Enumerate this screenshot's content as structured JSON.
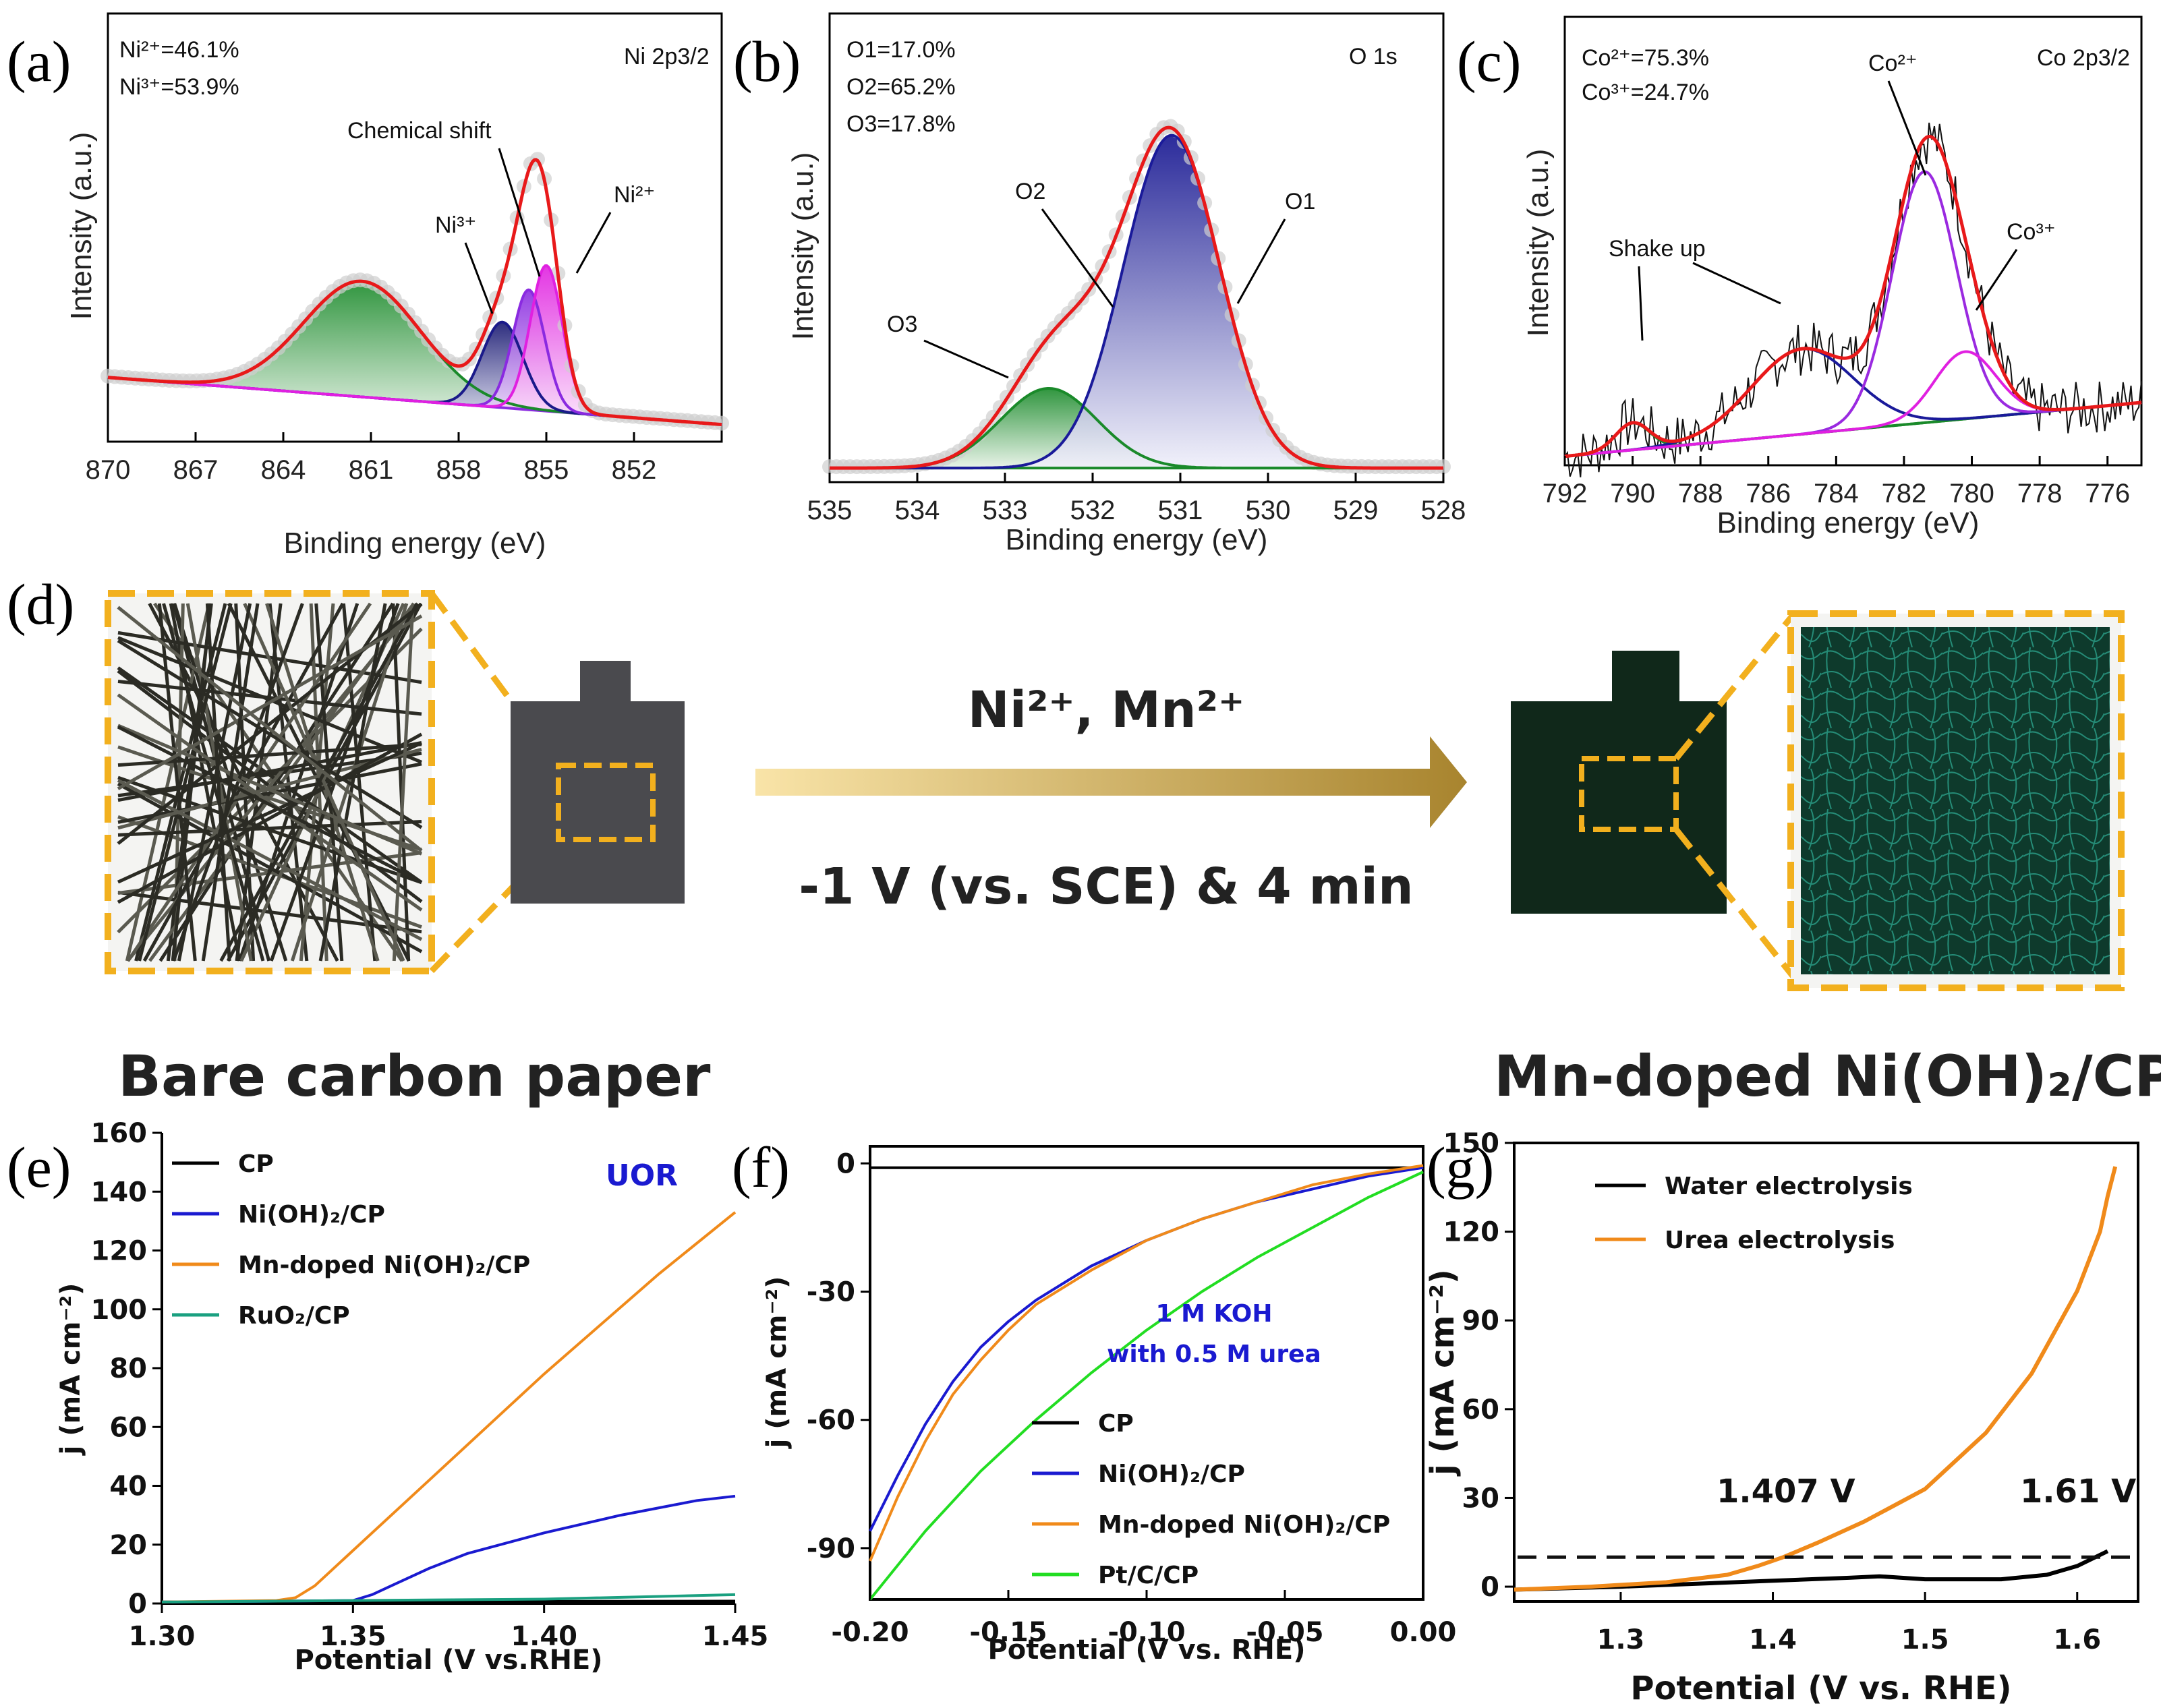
{
  "panel_labels": {
    "a": "(a)",
    "b": "(b)",
    "c": "(c)",
    "d": "(d)",
    "e": "(e)",
    "f": "(f)",
    "g": "(g)"
  },
  "scheme": {
    "arrow_top": "Ni²⁺, Mn²⁺",
    "arrow_bottom": "-1 V (vs. SCE) & 4 min",
    "left_caption": "Bare carbon paper",
    "right_caption": "Mn-doped Ni(OH)₂/CP",
    "colors": {
      "frame": "#f2b01e",
      "arrow_light": "#f7dfa0",
      "arrow_dark": "#b08a2e",
      "paper": "#4a4a4a",
      "mn_paper": "#0f2a18",
      "mn_texture": "#1a6a5a"
    }
  },
  "chart_data": [
    {
      "id": "a",
      "type": "line",
      "title": "Ni 2p3/2",
      "xlabel": "Binding energy (eV)",
      "ylabel": "Intensity (a.u.)",
      "xlim": [
        870,
        849
      ],
      "ylim": [
        0,
        100
      ],
      "x_ticks": [
        "870",
        "867",
        "864",
        "861",
        "858",
        "855",
        "852"
      ],
      "ratios": [
        "Ni²⁺=46.1%",
        "Ni³⁺=53.9%"
      ],
      "annotations": {
        "shift": "Chemical shift",
        "ni3": "Ni³⁺",
        "ni2": "Ni²⁺"
      },
      "peaks": [
        {
          "name": "satellite",
          "center": 861.3,
          "sigma": 2.0,
          "amp": 27,
          "color": "#1a8a2a"
        },
        {
          "name": "Ni3+ a",
          "center": 856.5,
          "sigma": 0.7,
          "amp": 20,
          "color": "#1a1a8a"
        },
        {
          "name": "Ni3+ b",
          "center": 855.6,
          "sigma": 0.55,
          "amp": 28,
          "color": "#8a2ae0"
        },
        {
          "name": "Ni2+",
          "center": 855.0,
          "sigma": 0.55,
          "amp": 34,
          "color": "#e020e0"
        }
      ],
      "baseline": [
        15,
        4
      ],
      "envelope_color": "#e8191a"
    },
    {
      "id": "b",
      "type": "line",
      "title": "O 1s",
      "xlabel": "Binding energy (eV)",
      "ylabel": "Intensity (a.u.)",
      "xlim": [
        535,
        528
      ],
      "ylim": [
        0,
        100
      ],
      "x_ticks": [
        "535",
        "534",
        "533",
        "532",
        "531",
        "530",
        "529",
        "528"
      ],
      "ratios": [
        "O1=17.0%",
        "O2=65.2%",
        "O3=17.8%"
      ],
      "labels": {
        "o1": "O1",
        "o2": "O2",
        "o3": "O3"
      },
      "peaks": [
        {
          "name": "O3",
          "center": 532.5,
          "sigma": 0.55,
          "amp": 17,
          "color": "#1a8a2a"
        },
        {
          "name": "O1/O2",
          "center": 531.1,
          "sigma": 0.55,
          "amp": 71,
          "color": "#1a1a9a"
        },
        {
          "name": "shoulder",
          "center": 532.2,
          "sigma": 0.5,
          "amp": 10,
          "color": "#e8191a"
        }
      ],
      "baseline": [
        3,
        3
      ],
      "envelope_color": "#e8191a"
    },
    {
      "id": "c",
      "type": "line",
      "title": "Co 2p3/2",
      "xlabel": "Binding energy (eV)",
      "ylabel": "Intensity (a.u.)",
      "xlim": [
        792,
        775
      ],
      "ylim": [
        0,
        100
      ],
      "x_ticks": [
        "792",
        "790",
        "788",
        "786",
        "784",
        "782",
        "780",
        "778",
        "776"
      ],
      "ratios": [
        "Co²⁺=75.3%",
        "Co³⁺=24.7%"
      ],
      "annotations": {
        "shake": "Shake up",
        "co2": "Co²⁺",
        "co3": "Co³⁺"
      },
      "peaks": [
        {
          "name": "small sat",
          "center": 790.0,
          "sigma": 0.5,
          "amp": 6,
          "color": "#1a8a2a"
        },
        {
          "name": "shake up",
          "center": 785.0,
          "sigma": 1.5,
          "amp": 19,
          "color": "#1a1a9a"
        },
        {
          "name": "Co2+",
          "center": 781.4,
          "sigma": 0.95,
          "amp": 56,
          "color": "#9a2ae0"
        },
        {
          "name": "Co3+",
          "center": 780.2,
          "sigma": 0.9,
          "amp": 15,
          "color": "#e020e0"
        }
      ],
      "baseline": [
        2,
        14
      ],
      "envelope_color": "#e8191a"
    },
    {
      "id": "e",
      "type": "line",
      "title": "UOR",
      "xlabel": "Potential (V vs.RHE)",
      "ylabel": "j (mA cm⁻²)",
      "xlim": [
        1.3,
        1.45
      ],
      "ylim": [
        0,
        160
      ],
      "x_ticks": [
        "1.30",
        "1.35",
        "1.40",
        "1.45"
      ],
      "y_ticks": [
        "0",
        "20",
        "40",
        "60",
        "80",
        "100",
        "120",
        "140",
        "160"
      ],
      "series": [
        {
          "name": "CP",
          "color": "#000000",
          "x": [
            1.3,
            1.45
          ],
          "y": [
            0.5,
            0.8
          ]
        },
        {
          "name": "Ni(OH)₂/CP",
          "color": "#1a1ad0",
          "x": [
            1.3,
            1.35,
            1.355,
            1.36,
            1.37,
            1.38,
            1.4,
            1.42,
            1.44,
            1.45
          ],
          "y": [
            0.5,
            1,
            3,
            6,
            12,
            17,
            24,
            30,
            35,
            36.5
          ]
        },
        {
          "name": "Mn-doped Ni(OH)₂/CP",
          "color": "#f08a1a",
          "x": [
            1.3,
            1.33,
            1.335,
            1.34,
            1.35,
            1.37,
            1.4,
            1.43,
            1.45
          ],
          "y": [
            0.5,
            1,
            2,
            6,
            18,
            42,
            78,
            112,
            133
          ]
        },
        {
          "name": "RuO₂/CP",
          "color": "#1aa080",
          "x": [
            1.3,
            1.4,
            1.45
          ],
          "y": [
            0.5,
            1.5,
            3
          ]
        }
      ]
    },
    {
      "id": "f",
      "type": "line",
      "title": "1 M KOH with 0.5 M urea",
      "title_line1": "1 M KOH",
      "title_line2": "with 0.5 M urea",
      "xlabel": "Potential (V vs. RHE)",
      "ylabel": "j (mA cm⁻²)",
      "xlim": [
        -0.2,
        0.0
      ],
      "ylim": [
        -102,
        4
      ],
      "x_ticks": [
        "-0.20",
        "-0.15",
        "-0.10",
        "-0.05",
        "0.00"
      ],
      "y_ticks": [
        "0",
        "-30",
        "-60",
        "-90"
      ],
      "series": [
        {
          "name": "CP",
          "color": "#000000",
          "x": [
            -0.2,
            0.0
          ],
          "y": [
            -1,
            -1
          ]
        },
        {
          "name": "Ni(OH)₂/CP",
          "color": "#1a1ad0",
          "x": [
            -0.2,
            -0.19,
            -0.18,
            -0.17,
            -0.16,
            -0.15,
            -0.14,
            -0.12,
            -0.1,
            -0.08,
            -0.06,
            -0.04,
            -0.02,
            0.0
          ],
          "y": [
            -86,
            -73,
            -61,
            -51,
            -43,
            -37,
            -32,
            -24,
            -18,
            -13,
            -9,
            -6,
            -3,
            -1
          ]
        },
        {
          "name": "Mn-doped Ni(OH)₂/CP",
          "color": "#f08a1a",
          "x": [
            -0.2,
            -0.19,
            -0.18,
            -0.17,
            -0.16,
            -0.15,
            -0.14,
            -0.12,
            -0.1,
            -0.08,
            -0.06,
            -0.04,
            -0.02,
            0.0
          ],
          "y": [
            -93,
            -78,
            -65,
            -54,
            -46,
            -39,
            -33,
            -25,
            -18,
            -13,
            -9,
            -5,
            -2.5,
            -0.5
          ]
        },
        {
          "name": "Pt/C/CP",
          "color": "#22dd22",
          "x": [
            -0.2,
            -0.18,
            -0.16,
            -0.14,
            -0.12,
            -0.1,
            -0.08,
            -0.06,
            -0.04,
            -0.02,
            0.0
          ],
          "y": [
            -102,
            -86,
            -72,
            -60,
            -49,
            -39,
            -30,
            -22,
            -15,
            -8,
            -2
          ]
        }
      ]
    },
    {
      "id": "g",
      "type": "line",
      "xlabel": "Potential (V vs. RHE)",
      "ylabel": "j (mA cm⁻²)",
      "xlim": [
        1.23,
        1.64
      ],
      "ylim": [
        -5,
        150
      ],
      "x_ticks": [
        "1.3",
        "1.4",
        "1.5",
        "1.6"
      ],
      "y_ticks": [
        "0",
        "30",
        "60",
        "90",
        "120",
        "150"
      ],
      "annotations": {
        "urea_onset": "1.407 V",
        "water_onset": "1.61 V"
      },
      "reference_level": 10,
      "series": [
        {
          "name": "Water electrolysis",
          "color": "#000000",
          "x": [
            1.23,
            1.3,
            1.4,
            1.45,
            1.47,
            1.5,
            1.55,
            1.58,
            1.6,
            1.62
          ],
          "y": [
            -1,
            0,
            2,
            3,
            3.5,
            2.5,
            2.5,
            4,
            7,
            12
          ]
        },
        {
          "name": "Urea electrolysis",
          "color": "#f08a1a",
          "x": [
            1.23,
            1.28,
            1.33,
            1.37,
            1.39,
            1.407,
            1.43,
            1.46,
            1.5,
            1.54,
            1.57,
            1.6,
            1.615,
            1.62,
            1.625
          ],
          "y": [
            -1,
            0,
            1.5,
            4,
            7,
            10,
            15,
            22,
            33,
            52,
            72,
            100,
            120,
            132,
            142
          ]
        }
      ]
    }
  ]
}
